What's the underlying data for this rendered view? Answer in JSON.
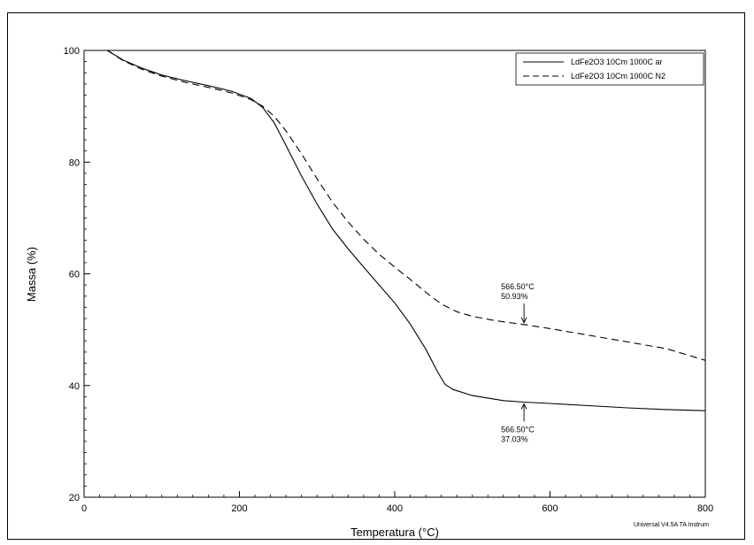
{
  "chart_data": {
    "type": "line",
    "xlabel": "Temperatura (°C)",
    "ylabel": "Massa (%)",
    "xlim": [
      0,
      800
    ],
    "ylim": [
      20,
      100
    ],
    "xticks": [
      0,
      200,
      400,
      600,
      800
    ],
    "yticks": [
      20,
      40,
      60,
      80,
      100
    ],
    "grid": false,
    "legend_position": "top-right",
    "series": [
      {
        "name": "LdFe2O3 10Cm 1000C ar",
        "line_style": "solid",
        "x": [
          30,
          50,
          75,
          100,
          130,
          160,
          190,
          215,
          230,
          245,
          260,
          280,
          300,
          320,
          340,
          360,
          380,
          400,
          420,
          440,
          455,
          465,
          475,
          500,
          540,
          566.5,
          600,
          650,
          700,
          750,
          800
        ],
        "y": [
          100,
          98.3,
          96.8,
          95.6,
          94.6,
          93.7,
          92.7,
          91.4,
          89.8,
          87.0,
          83.0,
          77.5,
          72.5,
          68.0,
          64.5,
          61.2,
          58.0,
          54.8,
          51.0,
          46.5,
          42.5,
          40.2,
          39.3,
          38.2,
          37.3,
          37.03,
          36.8,
          36.4,
          36.0,
          35.7,
          35.5
        ]
      },
      {
        "name": "LdFe2O3 10Cm 1000C N2",
        "line_style": "dashed",
        "x": [
          30,
          50,
          75,
          100,
          130,
          160,
          190,
          215,
          230,
          245,
          260,
          280,
          300,
          320,
          340,
          360,
          380,
          400,
          420,
          440,
          460,
          480,
          500,
          530,
          566.5,
          600,
          650,
          700,
          750,
          800
        ],
        "y": [
          100,
          98.2,
          96.6,
          95.4,
          94.3,
          93.4,
          92.4,
          91.2,
          90.0,
          88.2,
          85.6,
          81.5,
          77.0,
          72.8,
          69.3,
          66.2,
          63.5,
          61.2,
          59.0,
          56.7,
          54.6,
          53.2,
          52.4,
          51.6,
          50.93,
          50.2,
          49.0,
          47.8,
          46.6,
          44.5
        ]
      }
    ],
    "annotations": [
      {
        "x": 566.5,
        "y": 50.93,
        "label_temp": "566.50°C",
        "label_mass": "50.93%",
        "placement": "above"
      },
      {
        "x": 566.5,
        "y": 37.03,
        "label_temp": "566.50°C",
        "label_mass": "37.03%",
        "placement": "below"
      }
    ],
    "footer": "Universal V4.5A TA Instrum"
  }
}
